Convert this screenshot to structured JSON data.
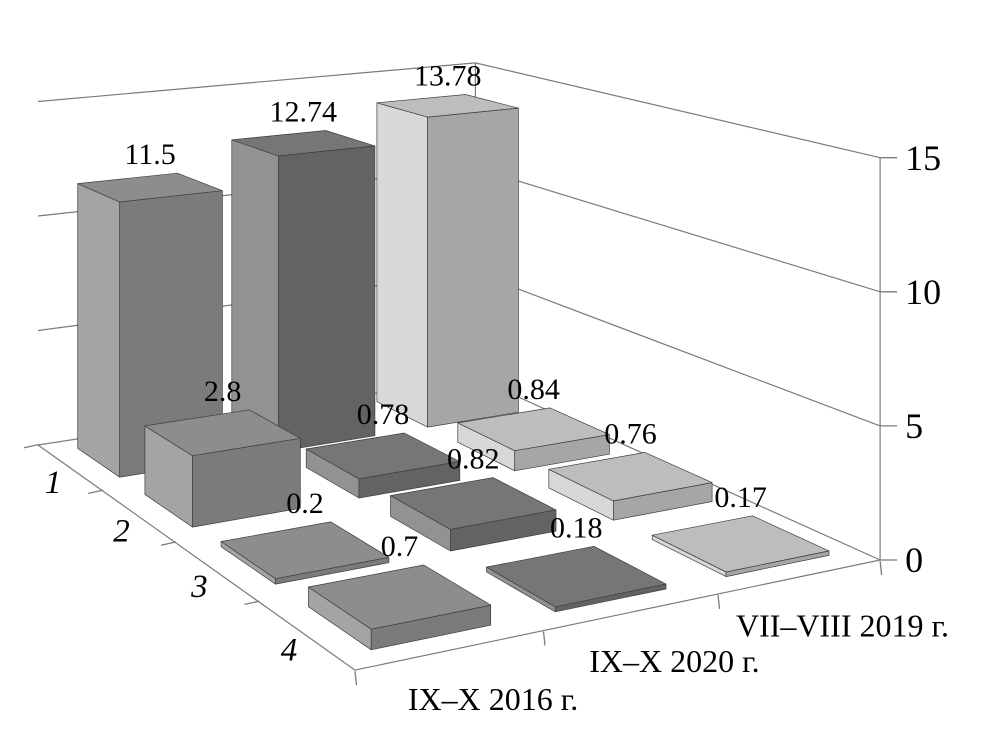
{
  "figure": {
    "background": "#ffffff",
    "line_color": "#7b7b7b",
    "text_color": "#000000"
  },
  "chart_data": {
    "type": "bar",
    "projection": "3d-perspective",
    "title": "",
    "xlabel": "",
    "ylabel": "",
    "categories": [
      "1",
      "2",
      "3",
      "4"
    ],
    "series": [
      {
        "name": "IX–X 2016 г.",
        "values": [
          11.5,
          2.8,
          0.2,
          0.7
        ],
        "color_top": "#8d8d8d",
        "color_left": "#a4a4a4",
        "color_front": "#7b7b7b"
      },
      {
        "name": "IX–X 2020 г.",
        "values": [
          12.74,
          0.78,
          0.82,
          0.18
        ],
        "color_top": "#767676",
        "color_left": "#929292",
        "color_front": "#636363"
      },
      {
        "name": "VII–VIII 2019 г.",
        "values": [
          13.78,
          0.84,
          0.76,
          0.17
        ],
        "color_top": "#bdbdbd",
        "color_left": "#d8d8d8",
        "color_front": "#a6a6a6"
      }
    ],
    "value_labels": [
      [
        "11.5",
        "2.8",
        "0.2",
        "0.7"
      ],
      [
        "12.74",
        "0.78",
        "0.82",
        "0.18"
      ],
      [
        "13.78",
        "0.84",
        "0.76",
        "0.17"
      ]
    ],
    "z_axis": {
      "tick_labels": [
        "0",
        "5",
        "10",
        "15"
      ],
      "min": 0,
      "max": 15,
      "step": 5
    },
    "grid": true,
    "legend_position": "none",
    "bar_outline": "#3f3f3f"
  }
}
